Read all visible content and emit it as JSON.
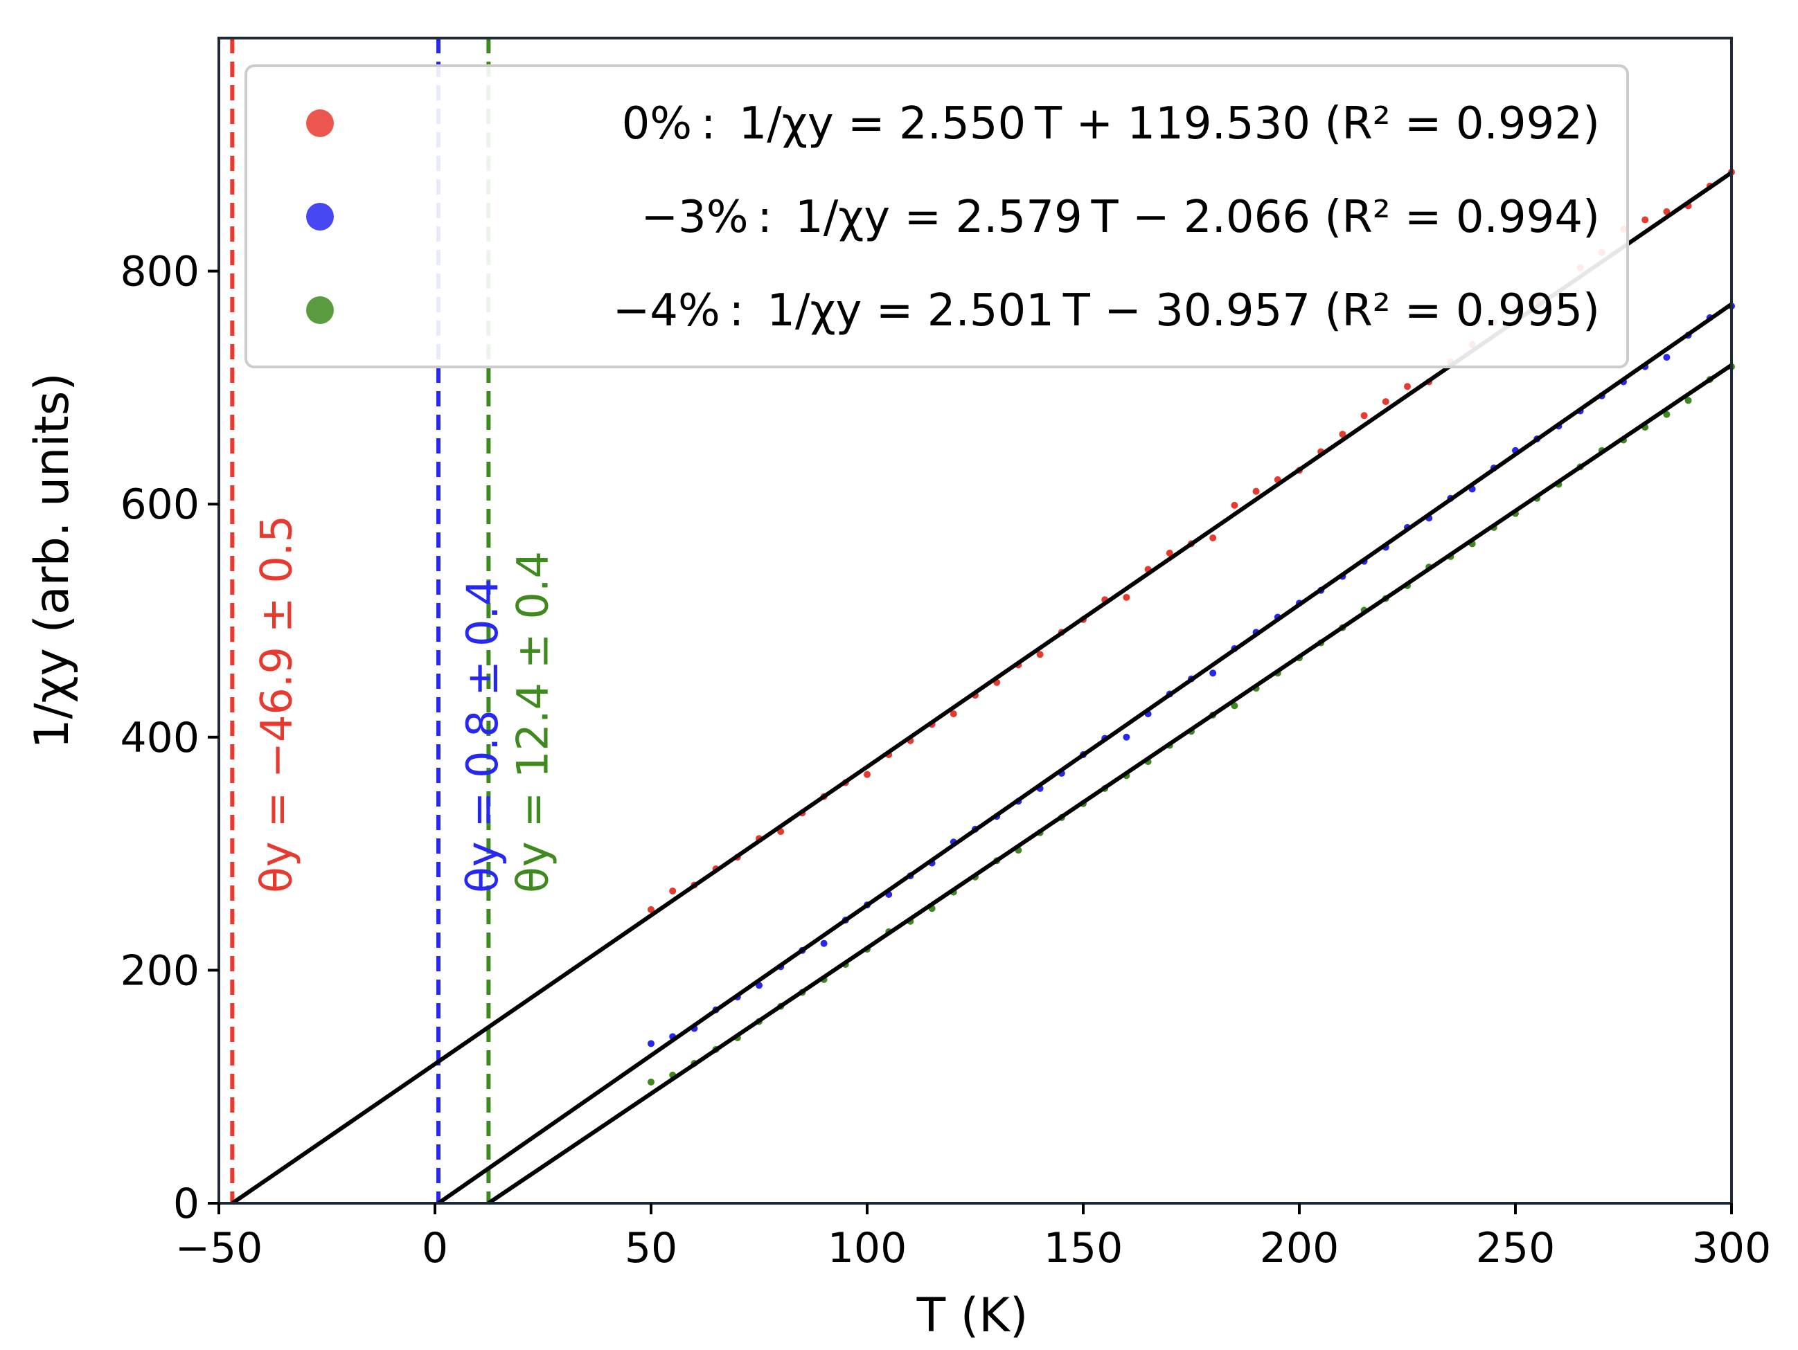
{
  "chart_data": {
    "type": "scatter",
    "title": "",
    "xlabel": "T (K)",
    "ylabel": "1/χy (arb. units)",
    "xlim": [
      -50,
      300
    ],
    "ylim": [
      0,
      1000
    ],
    "xticks": [
      -50,
      0,
      50,
      100,
      150,
      200,
      250,
      300
    ],
    "xtick_labels": [
      "−50",
      "0",
      "50",
      "100",
      "150",
      "200",
      "250",
      "300"
    ],
    "yticks": [
      0,
      200,
      400,
      600,
      800
    ],
    "ytick_labels": [
      "0",
      "200",
      "400",
      "600",
      "800"
    ],
    "grid": false,
    "legend_position": "top-right",
    "x": [
      50,
      55,
      60,
      65,
      70,
      75,
      80,
      85,
      90,
      95,
      100,
      105,
      110,
      115,
      120,
      125,
      130,
      135,
      140,
      145,
      150,
      155,
      160,
      165,
      170,
      175,
      180,
      185,
      190,
      195,
      200,
      205,
      210,
      215,
      220,
      225,
      230,
      235,
      240,
      245,
      250,
      255,
      260,
      265,
      270,
      275,
      280,
      285,
      290,
      295,
      300
    ],
    "series": [
      {
        "name": "0%",
        "legend": "0% :  1/χy = 2.550 T + 119.530 (R² = 0.992)",
        "color": "#e8392f",
        "fit_slope": 2.55,
        "fit_intercept": 119.53,
        "r2": 0.992,
        "theta_label": "θy = −46.9 ± 0.5",
        "theta": -46.9,
        "values": [
          252,
          268,
          273,
          287,
          297,
          313,
          319,
          335,
          349,
          361,
          368,
          385,
          397,
          411,
          420,
          436,
          447,
          462,
          471,
          490,
          501,
          518,
          520,
          544,
          558,
          566,
          571,
          599,
          611,
          621,
          629,
          645,
          660,
          676,
          688,
          701,
          705,
          722,
          737,
          756,
          767,
          775,
          781,
          803,
          816,
          836,
          844,
          851,
          856,
          873,
          885
        ]
      },
      {
        "name": "−3%",
        "legend": "−3% :  1/χy = 2.579 T − 2.066 (R² = 0.994)",
        "color": "#2727f2",
        "fit_slope": 2.579,
        "fit_intercept": -2.066,
        "r2": 0.994,
        "theta_label": "θy = 0.8 ± 0.4",
        "theta": 0.8,
        "values": [
          137,
          143,
          150,
          166,
          177,
          187,
          203,
          217,
          223,
          243,
          256,
          265,
          281,
          292,
          310,
          321,
          332,
          345,
          356,
          369,
          385,
          399,
          400,
          420,
          437,
          450,
          455,
          476,
          490,
          503,
          515,
          526,
          538,
          551,
          563,
          580,
          588,
          605,
          613,
          631,
          646,
          656,
          667,
          680,
          693,
          705,
          718,
          726,
          745,
          760,
          770
        ]
      },
      {
        "name": "−4%",
        "legend": "−4% :  1/χy = 2.501 T − 30.957 (R² = 0.995)",
        "color": "#3e8a1e",
        "fit_slope": 2.501,
        "fit_intercept": -30.957,
        "r2": 0.995,
        "theta_label": "θy = 12.4 ± 0.4",
        "theta": 12.4,
        "values": [
          104,
          110,
          120,
          132,
          142,
          156,
          169,
          181,
          192,
          205,
          218,
          233,
          242,
          253,
          267,
          280,
          294,
          303,
          318,
          331,
          343,
          356,
          367,
          379,
          393,
          405,
          419,
          427,
          442,
          455,
          468,
          481,
          494,
          509,
          519,
          530,
          546,
          555,
          566,
          580,
          592,
          605,
          617,
          632,
          646,
          655,
          666,
          677,
          689,
          707,
          718
        ]
      }
    ]
  }
}
